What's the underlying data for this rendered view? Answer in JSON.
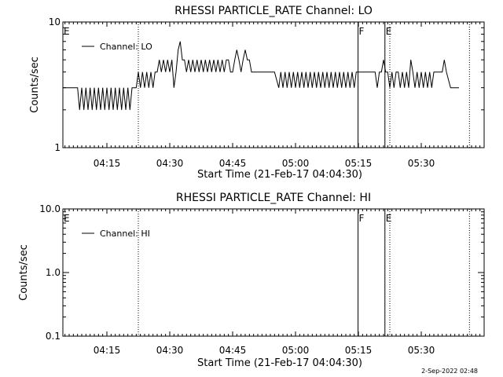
{
  "chart_data": [
    {
      "type": "line",
      "title": "RHESSI PARTICLE_RATE Channel: LO",
      "xlabel": "Start Time (21-Feb-17 04:04:30)",
      "ylabel": "Counts/sec",
      "y_scale": "log",
      "xlim": [
        "04:04:30",
        "05:45:00"
      ],
      "ylim": [
        1,
        10
      ],
      "x_ticks": [
        "04:15",
        "04:30",
        "04:45",
        "05:00",
        "05:15",
        "05:30"
      ],
      "y_ticks": [
        "1",
        "10"
      ],
      "legend": {
        "entries": [
          "Channel: LO"
        ],
        "placement": "top-left"
      },
      "annotations": [
        {
          "text": "E",
          "time": "04:04:30",
          "style": "label"
        },
        {
          "text": "",
          "time": "04:22:30",
          "style": "dotted"
        },
        {
          "text": "F",
          "time": "05:14:55",
          "style": "solid"
        },
        {
          "text": "E",
          "time": "05:21:20",
          "style": "solid"
        },
        {
          "text": "",
          "time": "05:22:30",
          "style": "dotted"
        },
        {
          "text": "",
          "time": "05:41:30",
          "style": "dotted"
        }
      ],
      "series": [
        {
          "name": "Channel: LO",
          "x": [
            "04:04:30",
            "04:08:00",
            "04:08:30",
            "04:09:00",
            "04:09:30",
            "04:10:00",
            "04:10:30",
            "04:11:00",
            "04:11:30",
            "04:12:00",
            "04:12:30",
            "04:13:00",
            "04:13:30",
            "04:14:00",
            "04:14:30",
            "04:15:00",
            "04:15:30",
            "04:16:00",
            "04:16:30",
            "04:17:00",
            "04:17:30",
            "04:18:00",
            "04:18:30",
            "04:19:00",
            "04:19:30",
            "04:20:00",
            "04:20:30",
            "04:21:00",
            "04:21:30",
            "04:22:00",
            "04:22:30",
            "04:23:00",
            "04:23:30",
            "04:24:00",
            "04:24:30",
            "04:25:00",
            "04:25:30",
            "04:26:00",
            "04:26:30",
            "04:27:00",
            "04:27:30",
            "04:28:00",
            "04:28:30",
            "04:29:00",
            "04:29:30",
            "04:30:00",
            "04:30:30",
            "04:31:00",
            "04:31:30",
            "04:32:00",
            "04:32:30",
            "04:33:00",
            "04:33:30",
            "04:34:00",
            "04:34:30",
            "04:35:00",
            "04:35:30",
            "04:36:00",
            "04:36:30",
            "04:37:00",
            "04:37:30",
            "04:38:00",
            "04:38:30",
            "04:39:00",
            "04:39:30",
            "04:40:00",
            "04:40:30",
            "04:41:00",
            "04:41:30",
            "04:42:00",
            "04:42:30",
            "04:43:00",
            "04:43:30",
            "04:44:00",
            "04:44:30",
            "04:45:00",
            "04:45:30",
            "04:46:00",
            "04:46:30",
            "04:47:00",
            "04:47:30",
            "04:48:00",
            "04:48:30",
            "04:49:00",
            "04:49:30",
            "04:50:00",
            "04:51:00",
            "04:52:00",
            "04:53:00",
            "04:54:00",
            "04:55:00",
            "04:56:00",
            "04:56:30",
            "04:57:00",
            "04:57:30",
            "04:58:00",
            "04:58:30",
            "04:59:00",
            "04:59:30",
            "05:00:00",
            "05:00:30",
            "05:01:00",
            "05:01:30",
            "05:02:00",
            "05:02:30",
            "05:03:00",
            "05:03:30",
            "05:04:00",
            "05:04:30",
            "05:05:00",
            "05:05:30",
            "05:06:00",
            "05:06:30",
            "05:07:00",
            "05:07:30",
            "05:08:00",
            "05:08:30",
            "05:09:00",
            "05:09:30",
            "05:10:00",
            "05:10:30",
            "05:11:00",
            "05:11:30",
            "05:12:00",
            "05:12:30",
            "05:13:00",
            "05:13:30",
            "05:14:00",
            "05:14:30",
            "05:15:00",
            "05:16:00",
            "05:17:00",
            "05:18:00",
            "05:19:00",
            "05:19:30",
            "05:20:00",
            "05:20:30",
            "05:21:00",
            "05:21:30",
            "05:22:00",
            "05:22:30",
            "05:23:00",
            "05:23:30",
            "05:24:00",
            "05:24:30",
            "05:25:00",
            "05:25:30",
            "05:26:00",
            "05:26:30",
            "05:27:00",
            "05:27:30",
            "05:28:00",
            "05:28:30",
            "05:29:00",
            "05:29:30",
            "05:30:00",
            "05:30:30",
            "05:31:00",
            "05:31:30",
            "05:32:00",
            "05:32:30",
            "05:33:00",
            "05:33:30",
            "05:34:00",
            "05:34:30",
            "05:35:00",
            "05:35:30",
            "05:36:00",
            "05:37:00",
            "05:38:00",
            "05:39:00"
          ],
          "values": [
            3,
            3,
            2,
            3,
            2,
            3,
            2,
            3,
            2,
            3,
            2,
            3,
            2,
            3,
            2,
            3,
            2,
            3,
            2,
            3,
            2,
            3,
            2,
            3,
            2,
            3,
            2,
            3,
            3,
            3,
            4,
            3,
            4,
            3,
            4,
            3,
            4,
            3,
            4,
            4,
            5,
            4,
            5,
            4,
            5,
            4,
            5,
            3,
            4,
            6,
            7,
            5,
            5,
            4,
            5,
            4,
            5,
            4,
            5,
            4,
            5,
            4,
            5,
            4,
            5,
            4,
            5,
            4,
            5,
            4,
            5,
            4,
            5,
            5,
            4,
            4,
            5,
            6,
            5,
            4,
            5,
            6,
            5,
            5,
            4,
            4,
            4,
            4,
            4,
            4,
            4,
            3,
            4,
            3,
            4,
            3,
            4,
            3,
            4,
            3,
            4,
            3,
            4,
            3,
            4,
            3,
            4,
            3,
            4,
            3,
            4,
            3,
            4,
            3,
            4,
            3,
            4,
            3,
            4,
            3,
            4,
            3,
            4,
            3,
            4,
            3,
            4,
            3,
            4,
            4,
            4,
            4,
            4,
            4,
            3,
            4,
            4,
            5,
            4,
            4,
            3,
            4,
            3,
            4,
            4,
            3,
            4,
            3,
            4,
            3,
            5,
            4,
            3,
            4,
            3,
            4,
            3,
            4,
            3,
            4,
            3,
            4,
            4,
            4,
            4,
            4,
            5,
            4,
            3,
            3,
            3
          ]
        }
      ]
    },
    {
      "type": "line",
      "title": "RHESSI PARTICLE_RATE Channel: HI",
      "xlabel": "Start Time (21-Feb-17 04:04:30)",
      "ylabel": "Counts/sec",
      "y_scale": "log",
      "xlim": [
        "04:04:30",
        "05:45:00"
      ],
      "ylim": [
        0.1,
        10.0
      ],
      "x_ticks": [
        "04:15",
        "04:30",
        "04:45",
        "05:00",
        "05:15",
        "05:30"
      ],
      "y_ticks": [
        "0.1",
        "1.0",
        "10.0"
      ],
      "legend": {
        "entries": [
          "Channel: HI"
        ],
        "placement": "top-left"
      },
      "annotations": [
        {
          "text": "E",
          "time": "04:04:30",
          "style": "label"
        },
        {
          "text": "",
          "time": "04:22:30",
          "style": "dotted"
        },
        {
          "text": "F",
          "time": "05:14:55",
          "style": "solid"
        },
        {
          "text": "E",
          "time": "05:21:20",
          "style": "solid"
        },
        {
          "text": "",
          "time": "05:22:30",
          "style": "dotted"
        },
        {
          "text": "",
          "time": "05:41:30",
          "style": "dotted"
        }
      ],
      "series": [
        {
          "name": "Channel: HI",
          "x": [],
          "values": []
        }
      ]
    }
  ],
  "footer": {
    "timestamp": "2-Sep-2022 02:48"
  }
}
